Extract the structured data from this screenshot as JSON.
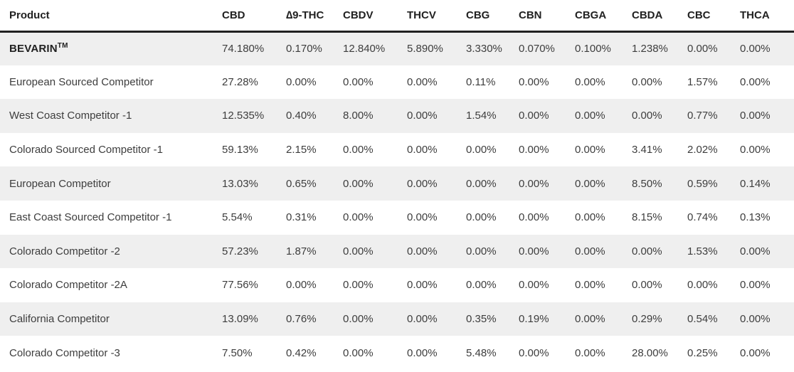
{
  "table": {
    "columns": [
      {
        "key": "product",
        "label": "Product"
      },
      {
        "key": "cbd",
        "label": "CBD"
      },
      {
        "key": "thc",
        "label": "∆9-THC"
      },
      {
        "key": "cbdv",
        "label": "CBDV"
      },
      {
        "key": "thcv",
        "label": "THCV"
      },
      {
        "key": "cbg",
        "label": "CBG"
      },
      {
        "key": "cbn",
        "label": "CBN"
      },
      {
        "key": "cbga",
        "label": "CBGA"
      },
      {
        "key": "cbda",
        "label": "CBDA"
      },
      {
        "key": "cbc",
        "label": "CBC"
      },
      {
        "key": "thca",
        "label": "THCA"
      }
    ],
    "rows": [
      {
        "product": "BEVARIN",
        "product_suffix": "TM",
        "emphasis": true,
        "values": [
          "74.180%",
          "0.170%",
          "12.840%",
          "5.890%",
          "3.330%",
          "0.070%",
          "0.100%",
          "1.238%",
          "0.00%",
          "0.00%"
        ]
      },
      {
        "product": "European Sourced Competitor",
        "values": [
          "27.28%",
          "0.00%",
          "0.00%",
          "0.00%",
          "0.11%",
          "0.00%",
          "0.00%",
          "0.00%",
          "1.57%",
          "0.00%"
        ]
      },
      {
        "product": "West Coast Competitor -1",
        "values": [
          "12.535%",
          "0.40%",
          "8.00%",
          "0.00%",
          "1.54%",
          "0.00%",
          "0.00%",
          "0.00%",
          "0.77%",
          "0.00%"
        ]
      },
      {
        "product": "Colorado Sourced Competitor -1",
        "values": [
          "59.13%",
          "2.15%",
          "0.00%",
          "0.00%",
          "0.00%",
          "0.00%",
          "0.00%",
          "3.41%",
          "2.02%",
          "0.00%"
        ]
      },
      {
        "product": "European Competitor",
        "values": [
          "13.03%",
          "0.65%",
          "0.00%",
          "0.00%",
          "0.00%",
          "0.00%",
          "0.00%",
          "8.50%",
          "0.59%",
          "0.14%"
        ]
      },
      {
        "product": "East Coast Sourced Competitor -1",
        "values": [
          "5.54%",
          "0.31%",
          "0.00%",
          "0.00%",
          "0.00%",
          "0.00%",
          "0.00%",
          "8.15%",
          "0.74%",
          "0.13%"
        ]
      },
      {
        "product": "Colorado Competitor -2",
        "values": [
          "57.23%",
          "1.87%",
          "0.00%",
          "0.00%",
          "0.00%",
          "0.00%",
          "0.00%",
          "0.00%",
          "1.53%",
          "0.00%"
        ]
      },
      {
        "product": "Colorado Competitor -2A",
        "values": [
          "77.56%",
          "0.00%",
          "0.00%",
          "0.00%",
          "0.00%",
          "0.00%",
          "0.00%",
          "0.00%",
          "0.00%",
          "0.00%"
        ]
      },
      {
        "product": "California Competitor",
        "values": [
          "13.09%",
          "0.76%",
          "0.00%",
          "0.00%",
          "0.35%",
          "0.19%",
          "0.00%",
          "0.29%",
          "0.54%",
          "0.00%"
        ]
      },
      {
        "product": "Colorado Competitor -3",
        "values": [
          "7.50%",
          "0.42%",
          "0.00%",
          "0.00%",
          "5.48%",
          "0.00%",
          "0.00%",
          "28.00%",
          "0.25%",
          "0.00%"
        ]
      }
    ],
    "colors": {
      "stripe_background": "#efefef",
      "header_rule": "#212121",
      "header_text": "#212121",
      "cell_text": "#3d3d3d"
    }
  },
  "chart_data": {
    "type": "table",
    "title": "",
    "columns": [
      "Product",
      "CBD",
      "∆9-THC",
      "CBDV",
      "THCV",
      "CBG",
      "CBN",
      "CBGA",
      "CBDA",
      "CBC",
      "THCA"
    ],
    "rows": [
      [
        "BEVARIN™",
        "74.180%",
        "0.170%",
        "12.840%",
        "5.890%",
        "3.330%",
        "0.070%",
        "0.100%",
        "1.238%",
        "0.00%",
        "0.00%"
      ],
      [
        "European Sourced Competitor",
        "27.28%",
        "0.00%",
        "0.00%",
        "0.00%",
        "0.11%",
        "0.00%",
        "0.00%",
        "0.00%",
        "1.57%",
        "0.00%"
      ],
      [
        "West Coast Competitor -1",
        "12.535%",
        "0.40%",
        "8.00%",
        "0.00%",
        "1.54%",
        "0.00%",
        "0.00%",
        "0.00%",
        "0.77%",
        "0.00%"
      ],
      [
        "Colorado Sourced Competitor -1",
        "59.13%",
        "2.15%",
        "0.00%",
        "0.00%",
        "0.00%",
        "0.00%",
        "0.00%",
        "3.41%",
        "2.02%",
        "0.00%"
      ],
      [
        "European Competitor",
        "13.03%",
        "0.65%",
        "0.00%",
        "0.00%",
        "0.00%",
        "0.00%",
        "0.00%",
        "8.50%",
        "0.59%",
        "0.14%"
      ],
      [
        "East Coast Sourced Competitor -1",
        "5.54%",
        "0.31%",
        "0.00%",
        "0.00%",
        "0.00%",
        "0.00%",
        "0.00%",
        "8.15%",
        "0.74%",
        "0.13%"
      ],
      [
        "Colorado Competitor -2",
        "57.23%",
        "1.87%",
        "0.00%",
        "0.00%",
        "0.00%",
        "0.00%",
        "0.00%",
        "0.00%",
        "1.53%",
        "0.00%"
      ],
      [
        "Colorado Competitor -2A",
        "77.56%",
        "0.00%",
        "0.00%",
        "0.00%",
        "0.00%",
        "0.00%",
        "0.00%",
        "0.00%",
        "0.00%",
        "0.00%"
      ],
      [
        "California Competitor",
        "13.09%",
        "0.76%",
        "0.00%",
        "0.00%",
        "0.35%",
        "0.19%",
        "0.00%",
        "0.29%",
        "0.54%",
        "0.00%"
      ],
      [
        "Colorado Competitor -3",
        "7.50%",
        "0.42%",
        "0.00%",
        "0.00%",
        "5.48%",
        "0.00%",
        "0.00%",
        "28.00%",
        "0.25%",
        "0.00%"
      ]
    ]
  }
}
